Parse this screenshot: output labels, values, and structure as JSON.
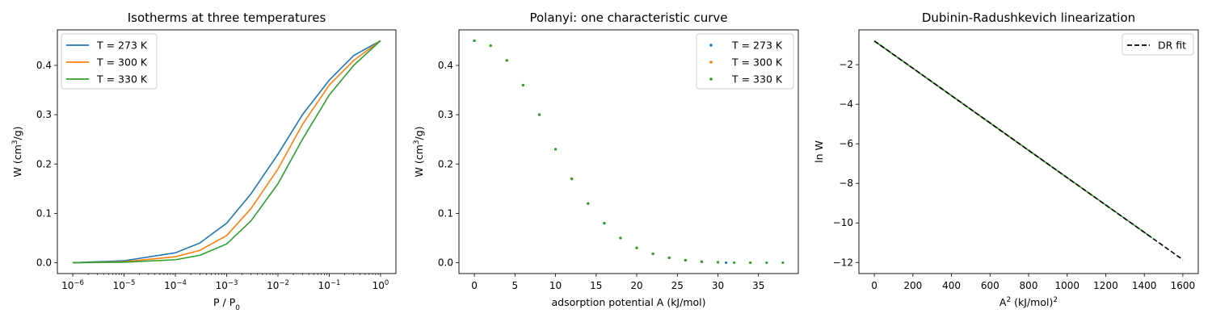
{
  "figure": {
    "background": "#ffffff"
  },
  "chart_data": [
    {
      "type": "line",
      "title": "Isotherms at three temperatures",
      "xlabel": {
        "base": "P / P",
        "sub": "0"
      },
      "ylabel": {
        "base": "W (cm",
        "sup": "3",
        "rest": "/g)"
      },
      "xscale": "log",
      "xlim": [
        1e-06,
        1
      ],
      "ylim": [
        -0.022,
        0.472
      ],
      "xticks": [
        {
          "value": 1e-06,
          "base": "10",
          "exp": "−6"
        },
        {
          "value": 1e-05,
          "base": "10",
          "exp": "−5"
        },
        {
          "value": 0.0001,
          "base": "10",
          "exp": "−4"
        },
        {
          "value": 0.001,
          "base": "10",
          "exp": "−3"
        },
        {
          "value": 0.01,
          "base": "10",
          "exp": "−2"
        },
        {
          "value": 0.1,
          "base": "10",
          "exp": "−1"
        },
        {
          "value": 1,
          "base": "10",
          "exp": "0"
        }
      ],
      "yticks": [
        {
          "value": 0.0,
          "label": "0.0"
        },
        {
          "value": 0.1,
          "label": "0.1"
        },
        {
          "value": 0.2,
          "label": "0.2"
        },
        {
          "value": 0.3,
          "label": "0.3"
        },
        {
          "value": 0.4,
          "label": "0.4"
        }
      ],
      "legend": "upper-left",
      "grid": false,
      "series": [
        {
          "name": "T = 273 K",
          "color": "#1f77b4",
          "x": [
            1e-06,
            1e-05,
            0.0001,
            0.0003,
            0.001,
            0.003,
            0.01,
            0.03,
            0.1,
            0.3,
            1
          ],
          "y": [
            0.0,
            0.004,
            0.02,
            0.04,
            0.08,
            0.14,
            0.22,
            0.3,
            0.37,
            0.42,
            0.45
          ]
        },
        {
          "name": "T = 300 K",
          "color": "#ff7f0e",
          "x": [
            1e-06,
            1e-05,
            0.0001,
            0.0003,
            0.001,
            0.003,
            0.01,
            0.03,
            0.1,
            0.3,
            1
          ],
          "y": [
            0.0,
            0.002,
            0.012,
            0.025,
            0.055,
            0.11,
            0.19,
            0.28,
            0.36,
            0.41,
            0.45
          ]
        },
        {
          "name": "T = 330 K",
          "color": "#2ca02c",
          "x": [
            1e-06,
            1e-05,
            0.0001,
            0.0003,
            0.001,
            0.003,
            0.01,
            0.03,
            0.1,
            0.3,
            1
          ],
          "y": [
            0.0,
            0.001,
            0.006,
            0.015,
            0.038,
            0.085,
            0.16,
            0.25,
            0.34,
            0.4,
            0.45
          ]
        }
      ]
    },
    {
      "type": "scatter",
      "title": "Polanyi: one characteristic curve",
      "xlabel": {
        "base": "adsorption potential A (kJ/mol)"
      },
      "ylabel": {
        "base": "W (cm",
        "sup": "3",
        "rest": "/g)"
      },
      "xlim": [
        -1.9,
        39.9
      ],
      "ylim": [
        -0.022,
        0.472
      ],
      "xticks": [
        {
          "value": 0,
          "label": "0"
        },
        {
          "value": 5,
          "label": "5"
        },
        {
          "value": 10,
          "label": "10"
        },
        {
          "value": 15,
          "label": "15"
        },
        {
          "value": 20,
          "label": "20"
        },
        {
          "value": 25,
          "label": "25"
        },
        {
          "value": 30,
          "label": "30"
        },
        {
          "value": 35,
          "label": "35"
        }
      ],
      "yticks": [
        {
          "value": 0.0,
          "label": "0.0"
        },
        {
          "value": 0.1,
          "label": "0.1"
        },
        {
          "value": 0.2,
          "label": "0.2"
        },
        {
          "value": 0.3,
          "label": "0.3"
        },
        {
          "value": 0.4,
          "label": "0.4"
        }
      ],
      "legend": "upper-right",
      "grid": false,
      "series": [
        {
          "name": "T = 273 K",
          "color": "#1f77b4",
          "x": [
            0.0,
            2.0,
            4.0,
            6.0,
            8.0,
            10.0,
            12.0,
            14.0,
            16.0,
            18.0,
            20.0,
            22.0,
            24.0,
            26.0,
            28.0,
            31.0
          ],
          "y": [
            0.45,
            0.44,
            0.41,
            0.36,
            0.3,
            0.23,
            0.17,
            0.12,
            0.08,
            0.05,
            0.03,
            0.018,
            0.01,
            0.005,
            0.002,
            0.0
          ]
        },
        {
          "name": "T = 300 K",
          "color": "#ff7f0e",
          "x": [
            0.0,
            2.0,
            4.0,
            6.0,
            8.0,
            10.0,
            12.0,
            14.0,
            16.0,
            18.0,
            20.0,
            22.0,
            24.0,
            26.0,
            28.0,
            30.0,
            34.0
          ],
          "y": [
            0.45,
            0.44,
            0.41,
            0.36,
            0.3,
            0.23,
            0.17,
            0.12,
            0.08,
            0.05,
            0.03,
            0.018,
            0.01,
            0.005,
            0.002,
            0.001,
            0.0
          ]
        },
        {
          "name": "T = 330 K",
          "color": "#2ca02c",
          "x": [
            0.0,
            2.0,
            4.0,
            6.0,
            8.0,
            10.0,
            12.0,
            14.0,
            16.0,
            18.0,
            20.0,
            22.0,
            24.0,
            26.0,
            28.0,
            30.0,
            32.0,
            34.0,
            36.0,
            38.0
          ],
          "y": [
            0.45,
            0.44,
            0.41,
            0.36,
            0.3,
            0.23,
            0.17,
            0.12,
            0.08,
            0.05,
            0.03,
            0.018,
            0.01,
            0.005,
            0.002,
            0.001,
            0.0,
            0.0,
            0.0,
            0.0
          ]
        }
      ]
    },
    {
      "type": "line",
      "title": "Dubinin-Radushkevich linearization",
      "xlabel": {
        "base": "A",
        "sup": "2",
        "rest": " (kJ/mol)",
        "sup2": "2"
      },
      "ylabel": {
        "base": "ln W"
      },
      "xlim": [
        -80,
        1680
      ],
      "ylim": [
        -12.56,
        -0.24
      ],
      "xticks": [
        {
          "value": 0,
          "label": "0"
        },
        {
          "value": 200,
          "label": "200"
        },
        {
          "value": 400,
          "label": "400"
        },
        {
          "value": 600,
          "label": "600"
        },
        {
          "value": 800,
          "label": "800"
        },
        {
          "value": 1000,
          "label": "1000"
        },
        {
          "value": 1200,
          "label": "1200"
        },
        {
          "value": 1400,
          "label": "1400"
        },
        {
          "value": 1600,
          "label": "1600"
        }
      ],
      "yticks": [
        {
          "value": -2,
          "label": "−2"
        },
        {
          "value": -4,
          "label": "−4"
        },
        {
          "value": -6,
          "label": "−6"
        },
        {
          "value": -8,
          "label": "−8"
        },
        {
          "value": -10,
          "label": "−10"
        },
        {
          "value": -12,
          "label": "−12"
        }
      ],
      "legend": "upper-right",
      "grid": false,
      "series": [
        {
          "name": "T = 273 K",
          "color": "#1f77b4",
          "style": "solid",
          "in_legend": false,
          "x": [
            0,
            1000
          ],
          "y": [
            -0.8,
            -7.71
          ]
        },
        {
          "name": "T = 300 K",
          "color": "#ff7f0e",
          "style": "solid",
          "in_legend": false,
          "x": [
            0,
            1150
          ],
          "y": [
            -0.8,
            -8.75
          ]
        },
        {
          "name": "T = 330 K",
          "color": "#2ca02c",
          "style": "solid",
          "in_legend": false,
          "x": [
            0,
            1440
          ],
          "y": [
            -0.8,
            -10.75
          ]
        },
        {
          "name": "DR fit",
          "color": "#000000",
          "style": "dashed",
          "in_legend": true,
          "x": [
            0,
            1600
          ],
          "y": [
            -0.8,
            -11.86
          ]
        }
      ]
    }
  ]
}
